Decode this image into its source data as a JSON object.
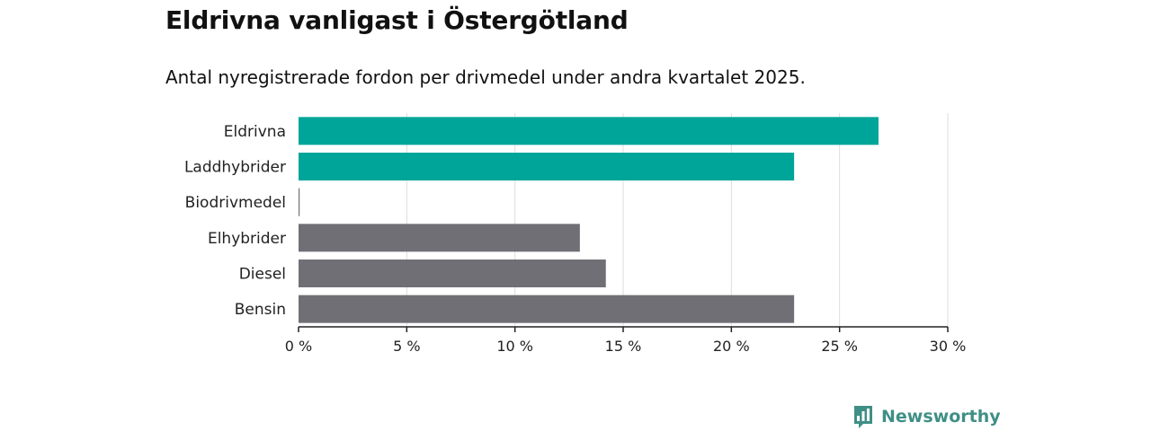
{
  "chart_data": {
    "type": "bar",
    "orientation": "horizontal",
    "title": "Eldrivna vanligast i Östergötland",
    "subtitle": "Antal nyregistrerade fordon per drivmedel under andra kvartalet 2025.",
    "categories": [
      "Eldrivna",
      "Laddhybrider",
      "Biodrivmedel",
      "Elhybrider",
      "Diesel",
      "Bensin"
    ],
    "values": [
      26.8,
      22.9,
      0.05,
      13.0,
      14.2,
      22.9
    ],
    "bar_colors": [
      "#00a59a",
      "#00a59a",
      "#716f76",
      "#716f76",
      "#716f76",
      "#716f76"
    ],
    "xlim": [
      0,
      30
    ],
    "xticks": [
      0,
      5,
      10,
      15,
      20,
      25,
      30
    ],
    "xtick_labels": [
      "0 %",
      "5 %",
      "10 %",
      "15 %",
      "20 %",
      "25 %",
      "30 %"
    ],
    "xlabel": "",
    "ylabel": "",
    "grid": "vertical",
    "gridline_color": "#dddddd"
  },
  "branding": {
    "logo_text": "Newsworthy",
    "logo_icon": "bar-chart-icon",
    "logo_color": "#3f8f86"
  }
}
